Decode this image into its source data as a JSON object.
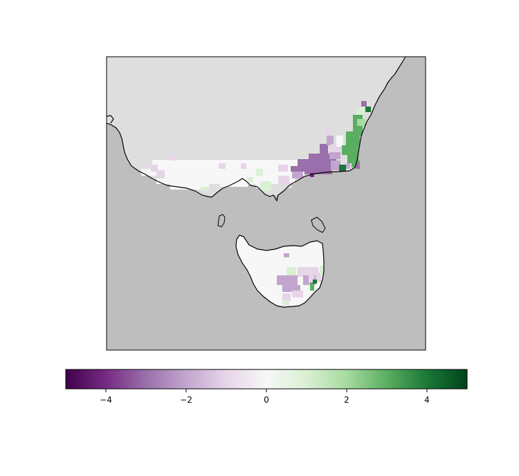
{
  "map": {
    "colors": {
      "ocean": "#bebebe",
      "land_no_data": "#dedede",
      "coastline": "#000000",
      "frame": "#000000"
    }
  },
  "colorbar": {
    "colormap": "PRGn",
    "range": [
      -5,
      5
    ],
    "ticks": [
      {
        "value": -4,
        "label": "−4"
      },
      {
        "value": -2,
        "label": "−2"
      },
      {
        "value": 0,
        "label": "0"
      },
      {
        "value": 2,
        "label": "2"
      },
      {
        "value": 4,
        "label": "4"
      }
    ],
    "stops": [
      {
        "t": 0.0,
        "color": "#40004b"
      },
      {
        "t": 0.1,
        "color": "#762a83"
      },
      {
        "t": 0.2,
        "color": "#9970ab"
      },
      {
        "t": 0.3,
        "color": "#c2a5cf"
      },
      {
        "t": 0.4,
        "color": "#e7d4e8"
      },
      {
        "t": 0.5,
        "color": "#f7f7f7"
      },
      {
        "t": 0.6,
        "color": "#d9f0d3"
      },
      {
        "t": 0.7,
        "color": "#a6dba0"
      },
      {
        "t": 0.8,
        "color": "#5aae61"
      },
      {
        "t": 0.9,
        "color": "#1b7837"
      },
      {
        "t": 1.0,
        "color": "#00441b"
      }
    ]
  }
}
